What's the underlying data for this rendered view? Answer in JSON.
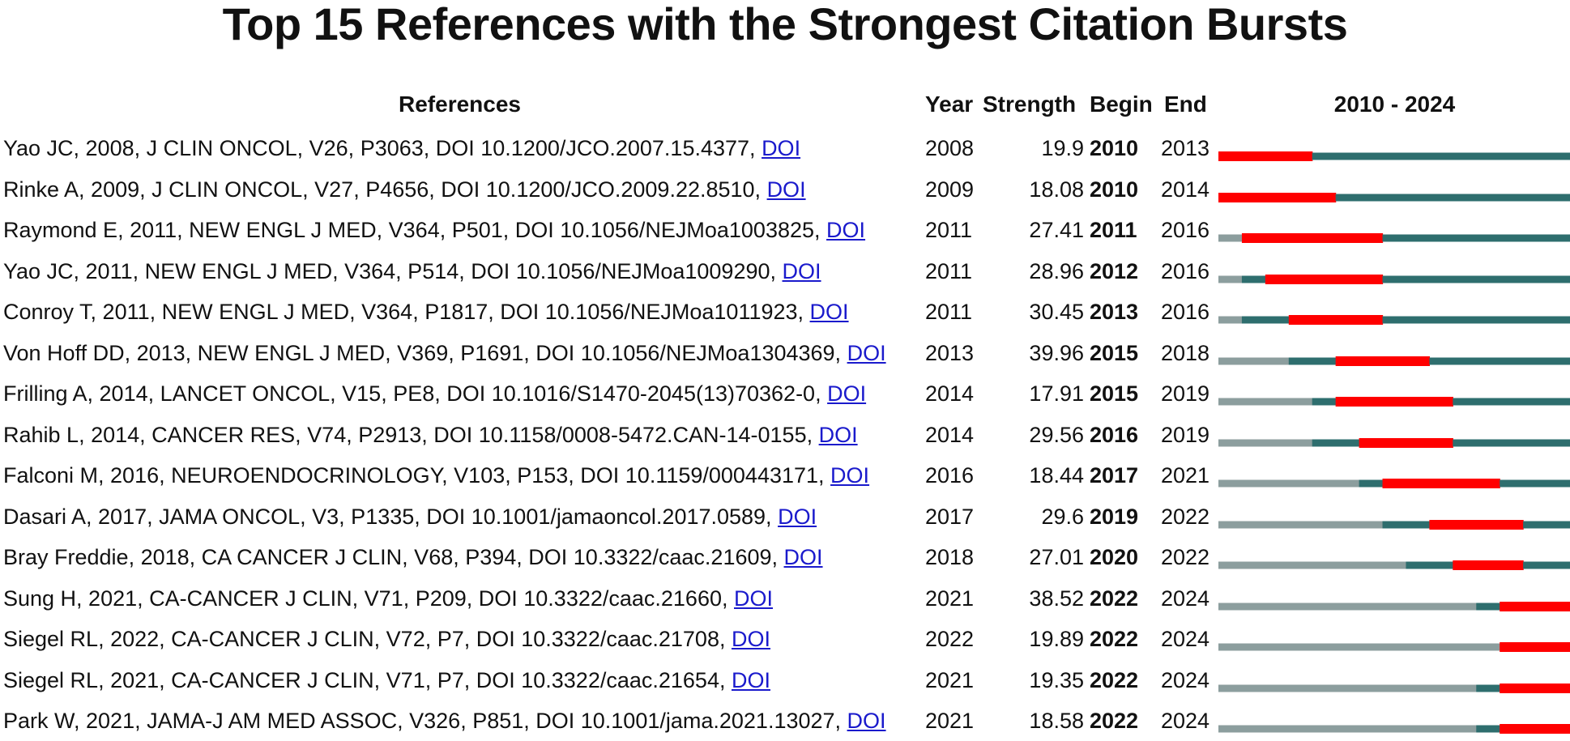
{
  "title": "Top 15 References with the Strongest Citation Bursts",
  "headers": {
    "references": "References",
    "year": "Year",
    "strength": "Strength",
    "begin": "Begin",
    "end": "End",
    "range": "2010 - 2024"
  },
  "colors": {
    "burst": "#ff0000",
    "active": "#2e6e6e",
    "inactive": "#8c9e9e",
    "link": "#1a1acc"
  },
  "chart_data": {
    "type": "table",
    "title": "Top 15 References with the Strongest Citation Bursts",
    "period_start": 2010,
    "period_end": 2024,
    "rows": [
      {
        "reference": "Yao JC, 2008, J CLIN ONCOL, V26, P3063, DOI 10.1200/JCO.2007.15.4377,",
        "doi_label": "DOI",
        "year": "2008",
        "strength": "19.9",
        "begin": "2010",
        "end": "2013"
      },
      {
        "reference": "Rinke A, 2009, J CLIN ONCOL, V27, P4656, DOI 10.1200/JCO.2009.22.8510,",
        "doi_label": "DOI",
        "year": "2009",
        "strength": "18.08",
        "begin": "2010",
        "end": "2014"
      },
      {
        "reference": "Raymond E, 2011, NEW ENGL J MED, V364, P501, DOI 10.1056/NEJMoa1003825,",
        "doi_label": "DOI",
        "year": "2011",
        "strength": "27.41",
        "begin": "2011",
        "end": "2016"
      },
      {
        "reference": "Yao JC, 2011, NEW ENGL J MED, V364, P514, DOI 10.1056/NEJMoa1009290,",
        "doi_label": "DOI",
        "year": "2011",
        "strength": "28.96",
        "begin": "2012",
        "end": "2016"
      },
      {
        "reference": "Conroy T, 2011, NEW ENGL J MED, V364, P1817, DOI 10.1056/NEJMoa1011923,",
        "doi_label": "DOI",
        "year": "2011",
        "strength": "30.45",
        "begin": "2013",
        "end": "2016"
      },
      {
        "reference": "Von Hoff DD, 2013, NEW ENGL J MED, V369, P1691, DOI 10.1056/NEJMoa1304369,",
        "doi_label": "DOI",
        "year": "2013",
        "strength": "39.96",
        "begin": "2015",
        "end": "2018"
      },
      {
        "reference": "Frilling A, 2014, LANCET ONCOL, V15, PE8, DOI 10.1016/S1470-2045(13)70362-0,",
        "doi_label": "DOI",
        "year": "2014",
        "strength": "17.91",
        "begin": "2015",
        "end": "2019"
      },
      {
        "reference": "Rahib L, 2014, CANCER RES, V74, P2913, DOI 10.1158/0008-5472.CAN-14-0155,",
        "doi_label": "DOI",
        "year": "2014",
        "strength": "29.56",
        "begin": "2016",
        "end": "2019"
      },
      {
        "reference": "Falconi M, 2016, NEUROENDOCRINOLOGY, V103, P153, DOI 10.1159/000443171,",
        "doi_label": "DOI",
        "year": "2016",
        "strength": "18.44",
        "begin": "2017",
        "end": "2021"
      },
      {
        "reference": "Dasari A, 2017, JAMA ONCOL, V3, P1335, DOI 10.1001/jamaoncol.2017.0589,",
        "doi_label": "DOI",
        "year": "2017",
        "strength": "29.6",
        "begin": "2019",
        "end": "2022"
      },
      {
        "reference": "Bray Freddie, 2018, CA CANCER J CLIN, V68, P394, DOI 10.3322/caac.21609,",
        "doi_label": "DOI",
        "year": "2018",
        "strength": "27.01",
        "begin": "2020",
        "end": "2022"
      },
      {
        "reference": "Sung H, 2021, CA-CANCER J CLIN, V71, P209, DOI 10.3322/caac.21660,",
        "doi_label": "DOI",
        "year": "2021",
        "strength": "38.52",
        "begin": "2022",
        "end": "2024"
      },
      {
        "reference": "Siegel RL, 2022, CA-CANCER J CLIN, V72, P7, DOI 10.3322/caac.21708,",
        "doi_label": "DOI",
        "year": "2022",
        "strength": "19.89",
        "begin": "2022",
        "end": "2024"
      },
      {
        "reference": "Siegel RL, 2021, CA-CANCER J CLIN, V71, P7, DOI 10.3322/caac.21654,",
        "doi_label": "DOI",
        "year": "2021",
        "strength": "19.35",
        "begin": "2022",
        "end": "2024"
      },
      {
        "reference": "Park W, 2021, JAMA-J AM MED ASSOC, V326, P851, DOI 10.1001/jama.2021.13027,",
        "doi_label": "DOI",
        "year": "2021",
        "strength": "18.58",
        "begin": "2022",
        "end": "2024"
      }
    ]
  }
}
